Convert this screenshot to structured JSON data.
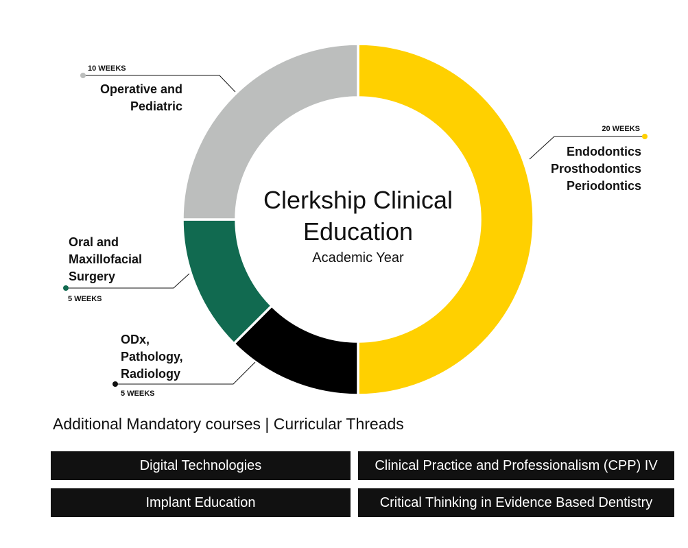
{
  "chart_data": {
    "type": "pie",
    "variant": "donut",
    "title": [
      "Clerkship Clinical",
      "Education"
    ],
    "subtitle": "Academic Year",
    "slices": [
      {
        "label_lines": [
          "Endodontics",
          "Prosthodontics",
          "Periodontics"
        ],
        "weeks_label": "20 WEEKS",
        "value": 20,
        "color": "#FFD000"
      },
      {
        "label_lines": [
          "ODx,",
          "Pathology,",
          "Radiology"
        ],
        "weeks_label": "5 WEEKS",
        "value": 5,
        "color": "#000000"
      },
      {
        "label_lines": [
          "Oral and",
          "Maxillofacial",
          "Surgery"
        ],
        "weeks_label": "5 WEEKS",
        "value": 5,
        "color": "#116A50"
      },
      {
        "label_lines": [
          "Operative and",
          "Pediatric"
        ],
        "weeks_label": "10 WEEKS",
        "value": 10,
        "color": "#BCBEBD"
      }
    ]
  },
  "courses_section": {
    "heading": "Additional Mandatory courses | Curricular Threads",
    "items": [
      "Digital Technologies",
      "Clinical Practice and Professionalism (CPP) IV",
      "Implant Education",
      "Critical Thinking in Evidence Based Dentistry"
    ]
  }
}
